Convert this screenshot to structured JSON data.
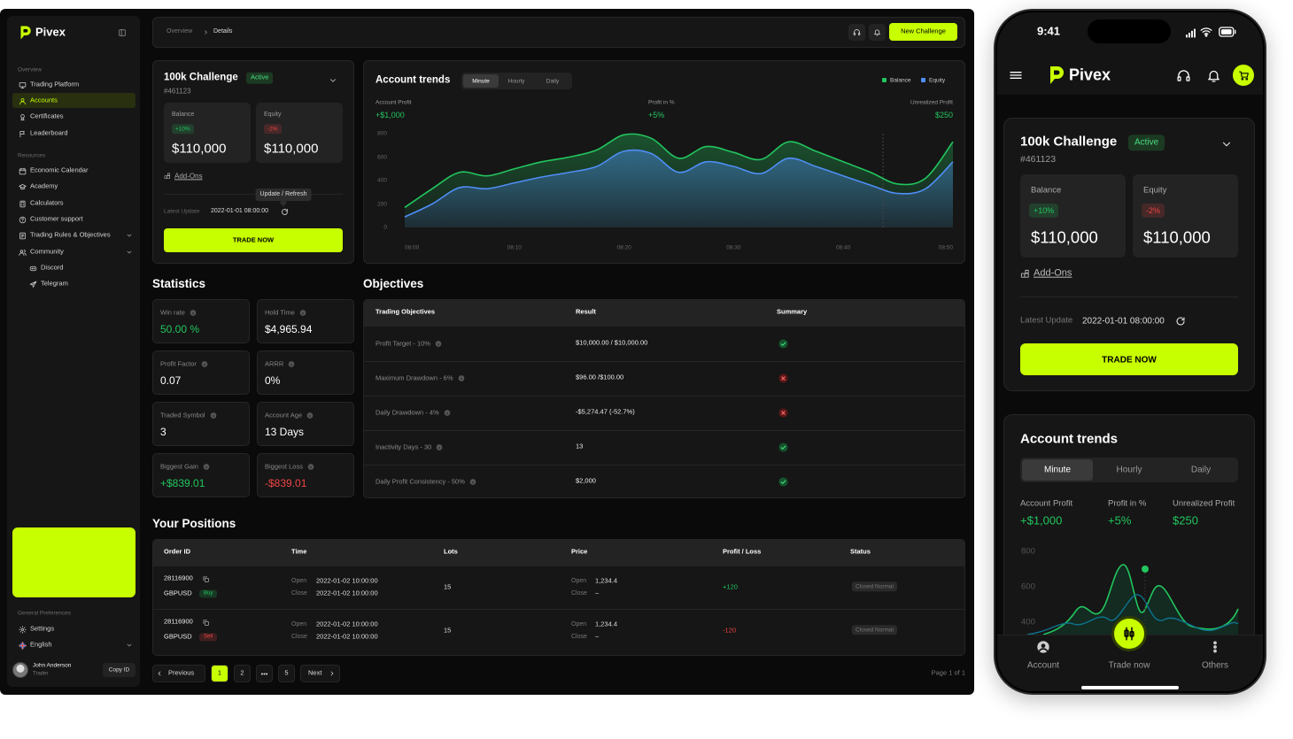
{
  "sidebar": {
    "brand": "Pivex",
    "overview": {
      "title": "Overview",
      "items": [
        "Trading Platform",
        "Accounts",
        "Certificates",
        "Leaderboard"
      ]
    },
    "resources": {
      "title": "Resources",
      "items": [
        "Economic Calendar",
        "Academy",
        "Calculators",
        "Customer support",
        "Trading Rules & Objectives",
        "Community",
        "Discord",
        "Telegram"
      ]
    },
    "preferences": {
      "title": "General Preferences",
      "items": [
        "Settings",
        "English"
      ]
    },
    "user": {
      "name": "John Anderson",
      "role": "Trader",
      "action": "Copy ID"
    }
  },
  "topbar": {
    "breadcrumb": [
      "Overview",
      "Details"
    ],
    "button": "New Challenge"
  },
  "challenge": {
    "title": "100k Challenge",
    "status": "Active",
    "id": "#461123",
    "balance": {
      "label": "Balance",
      "change": "+10%",
      "value": "$110,000",
      "color": "#22c55e"
    },
    "equity": {
      "label": "Equity",
      "change": "-2%",
      "value": "$110,000",
      "color": "#ef4444"
    },
    "addons": "Add-Ons",
    "tooltip": "Update / Refresh",
    "update_label": "Latest Update",
    "update_time": "2022-01-01 08:00:00",
    "button": "TRADE NOW"
  },
  "trends": {
    "title": "Account trends",
    "tabs": [
      "Minute",
      "Hourly",
      "Daily"
    ],
    "metrics": [
      {
        "label": "Account Profit",
        "value": "+$1,000"
      },
      {
        "label": "Profit in %",
        "value": "+5%"
      },
      {
        "label": "Unrealized Profit",
        "value": "$250"
      }
    ]
  },
  "chart_data": {
    "type": "line",
    "area": true,
    "legend": "top-right",
    "x": [
      0,
      2.5,
      5,
      7.5,
      10,
      12.5,
      15,
      17.5,
      20,
      22.5,
      25,
      27.5,
      30,
      32.5,
      35,
      37.5,
      40,
      42.5,
      45,
      47.5,
      50
    ],
    "series": [
      {
        "name": "Balance",
        "color": "#22c55e",
        "values": [
          170,
          330,
          470,
          440,
          500,
          560,
          600,
          660,
          790,
          760,
          590,
          690,
          640,
          580,
          730,
          650,
          560,
          470,
          370,
          420,
          730
        ]
      },
      {
        "name": "Equity",
        "color": "#4f8ef7",
        "values": [
          90,
          200,
          340,
          330,
          380,
          430,
          470,
          520,
          650,
          630,
          470,
          560,
          520,
          460,
          590,
          520,
          440,
          360,
          290,
          330,
          560
        ]
      }
    ],
    "xlim": [
      0,
      50
    ],
    "xticks": [
      {
        "value": 0,
        "label": "08:00"
      },
      {
        "value": 10,
        "label": "08:10"
      },
      {
        "value": 20,
        "label": "08:20"
      },
      {
        "value": 30,
        "label": "08:30"
      },
      {
        "value": 40,
        "label": "08:40"
      },
      {
        "value": 50,
        "label": "08:50"
      }
    ],
    "ylim": [
      0,
      800
    ],
    "yticks": [
      0,
      200,
      400,
      600,
      800
    ]
  },
  "statistics": {
    "title": "Statistics",
    "items": [
      {
        "label": "Win rate",
        "value": "50.00 %",
        "color": "#22c55e"
      },
      {
        "label": "Hold Time",
        "value": "$4,965.94",
        "color": "#ffffff"
      },
      {
        "label": "Profit Factor",
        "value": "0.07",
        "color": "#ffffff"
      },
      {
        "label": "ARRR",
        "value": "0%",
        "color": "#ffffff"
      },
      {
        "label": "Traded Symbol",
        "value": "3",
        "color": "#ffffff"
      },
      {
        "label": "Account Age",
        "value": "13 Days",
        "color": "#ffffff"
      },
      {
        "label": "Biggest Gain",
        "value": "+$839.01",
        "color": "#22c55e"
      },
      {
        "label": "Biggest Loss",
        "value": "-$839.01",
        "color": "#ef4444"
      }
    ]
  },
  "objectives": {
    "title": "Objectives",
    "columns": [
      "Trading Objectives",
      "Result",
      "Summary"
    ],
    "rows": [
      {
        "objective": "Profit Target - 10%",
        "result": "$10,000.00 / $10,000.00",
        "passed": true
      },
      {
        "objective": "Maximum Drawdown - 6%",
        "result": "$96.00 /$100.00",
        "passed": false
      },
      {
        "objective": "Daily Drawdown - 4%",
        "result": "-$5,274.47 (-52.7%)",
        "passed": false
      },
      {
        "objective": "Inactivity Days - 30",
        "result": "13",
        "passed": true
      },
      {
        "objective": "Daily Profit Consistency - 50%",
        "result": "$2,000",
        "passed": true
      }
    ]
  },
  "positions": {
    "title": "Your Positions",
    "columns": [
      "Order ID",
      "Time",
      "Lots",
      "Price",
      "Profit / Loss",
      "Status"
    ],
    "open_label": "Open",
    "close_label": "Close",
    "rows": [
      {
        "order_id": "28116900",
        "symbol": "GBPUSD",
        "side": "Buy",
        "open_time": "2022-01-02 10:00:00",
        "close_time": "2022-01-02 10:00:00",
        "lots": "15",
        "open_price": "1,234.4",
        "close_price": "–",
        "pnl": "+120",
        "status": "Closed Normal",
        "color": "#22c55e"
      },
      {
        "order_id": "28116900",
        "symbol": "GBPUSD",
        "side": "Sell",
        "open_time": "2022-01-02 10:00:00",
        "close_time": "2022-01-02 10:00:00",
        "lots": "15",
        "open_price": "1,234.4",
        "close_price": "–",
        "pnl": "-120",
        "status": "Closed Normal",
        "color": "#ef4444"
      }
    ]
  },
  "pagination": {
    "previous": "Previous",
    "pages": [
      "1",
      "2",
      "5"
    ],
    "next": "Next",
    "summary": "Page 1 of 1"
  },
  "mobile": {
    "time": "9:41",
    "chart_yticks": [
      800,
      600,
      400
    ],
    "nav": [
      "Account",
      "Trade now",
      "Others"
    ]
  }
}
